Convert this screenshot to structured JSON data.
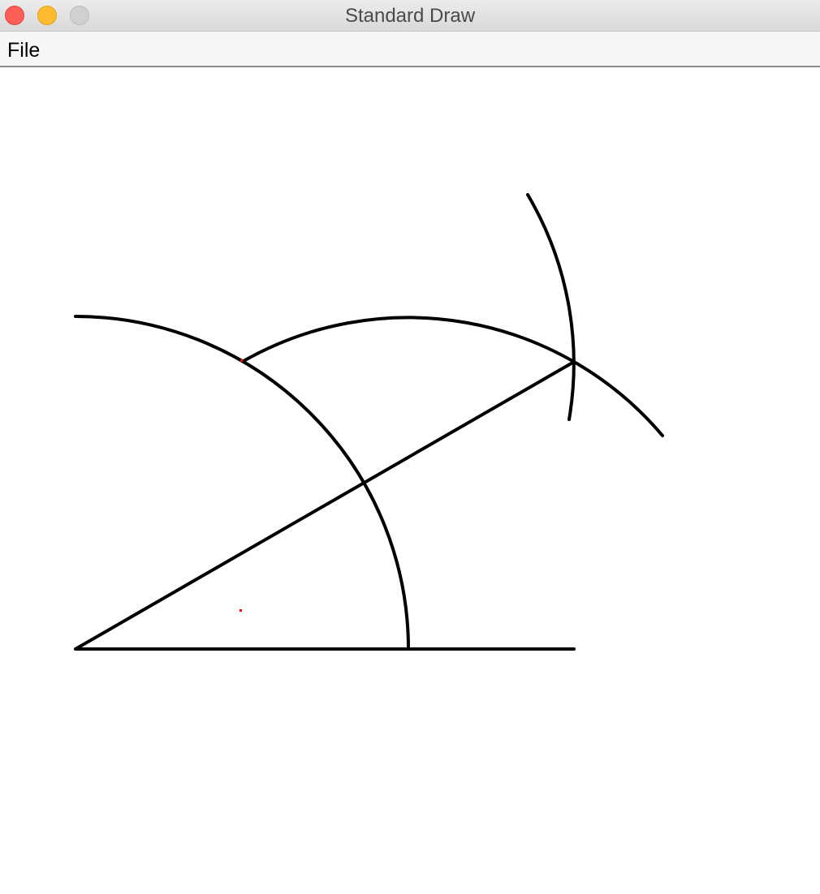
{
  "window": {
    "title": "Standard Draw"
  },
  "menu": {
    "file_label": "File"
  },
  "drawing": {
    "stroke_color": "#000000",
    "marker_color": "#ff0000"
  }
}
